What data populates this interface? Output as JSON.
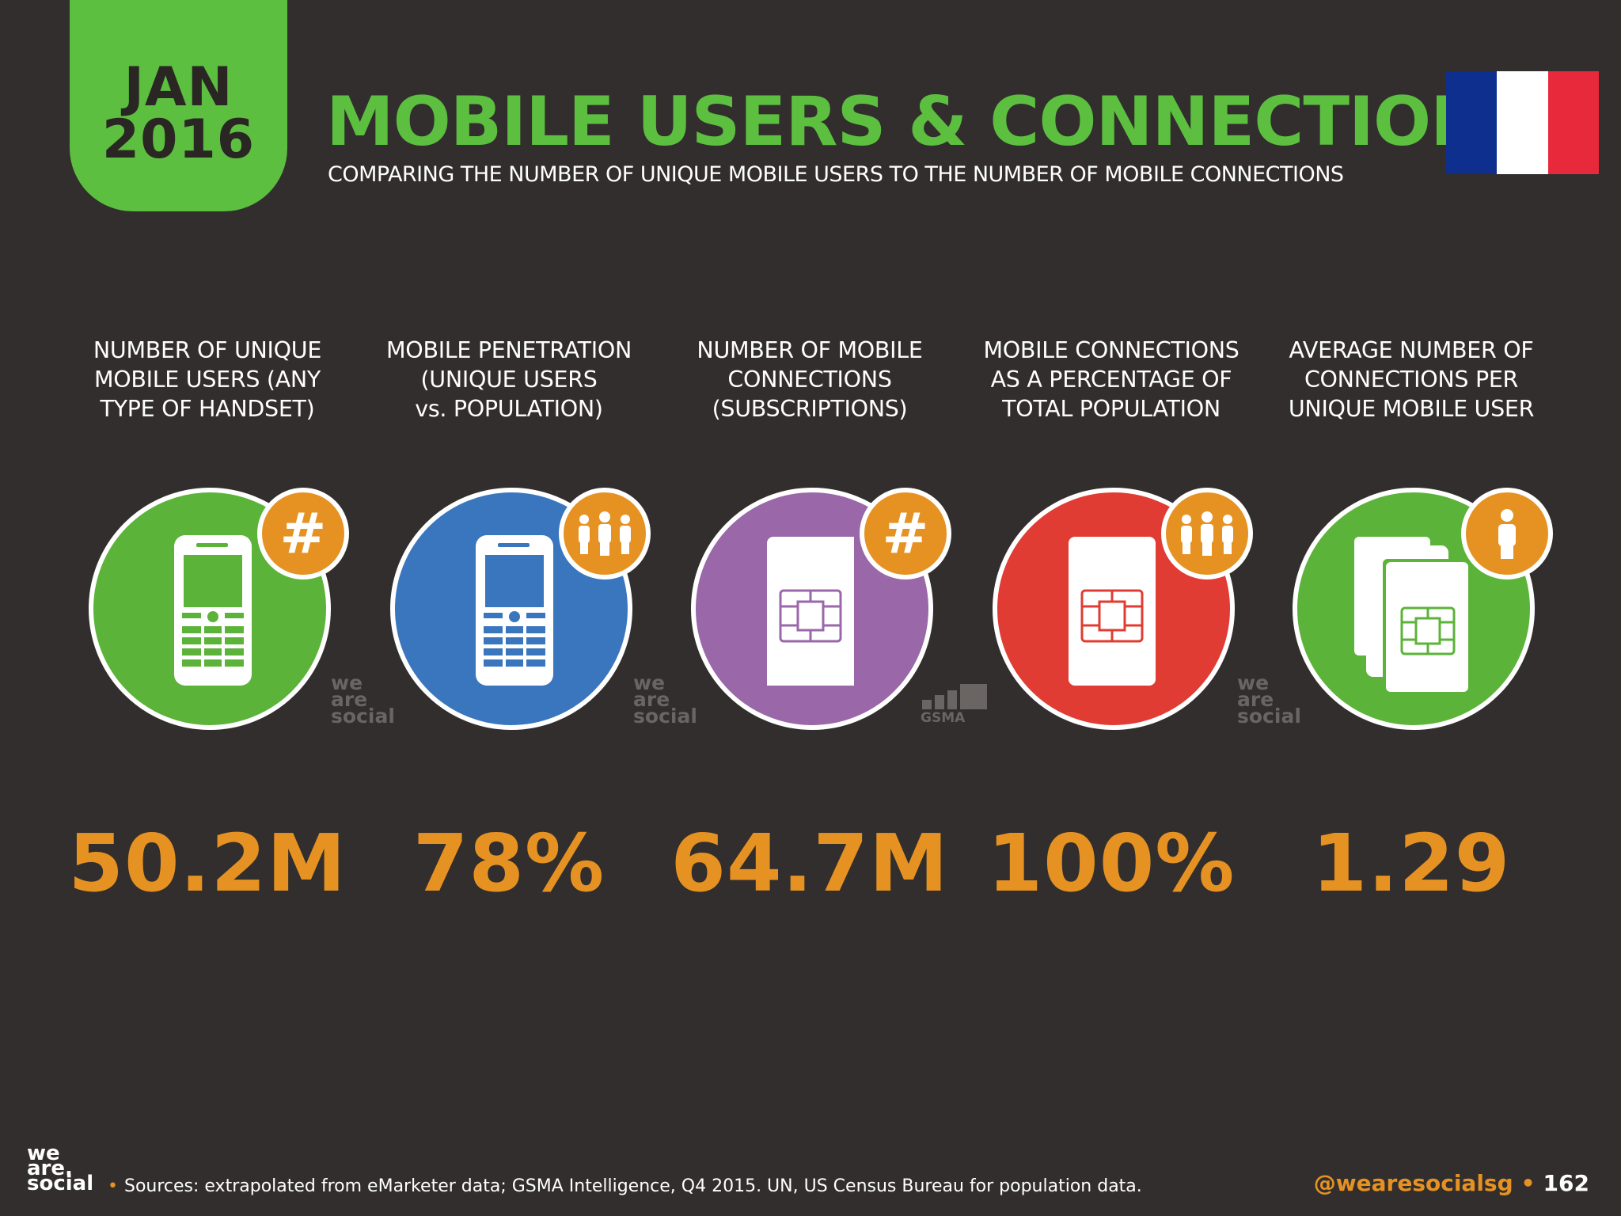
{
  "header": {
    "date_month": "JAN",
    "date_year": "2016",
    "title": "MOBILE USERS & CONNECTIONS",
    "subtitle": "COMPARING THE NUMBER OF UNIQUE MOBILE USERS TO THE NUMBER OF MOBILE CONNECTIONS"
  },
  "flag": {
    "country_icon": "france-flag-icon",
    "colors": [
      "#0f2f8f",
      "#ffffff",
      "#e8293b"
    ]
  },
  "stats": [
    {
      "label_lines": [
        "NUMBER OF UNIQUE",
        "MOBILE USERS (ANY",
        "TYPE OF HANDSET)"
      ],
      "value": "50.2M",
      "circle_color": "#5cb339",
      "icon": "mobile-phone-icon",
      "badge_icon": "hash-icon"
    },
    {
      "label_lines": [
        "MOBILE PENETRATION",
        "(UNIQUE USERS",
        "vs. POPULATION)"
      ],
      "value": "78%",
      "circle_color": "#3a76bd",
      "icon": "mobile-phone-icon",
      "badge_icon": "people-group-icon"
    },
    {
      "label_lines": [
        "NUMBER OF MOBILE",
        "CONNECTIONS",
        "(SUBSCRIPTIONS)"
      ],
      "value": "64.7M",
      "circle_color": "#9a67a9",
      "icon": "sim-card-icon",
      "badge_icon": "hash-icon"
    },
    {
      "label_lines": [
        "MOBILE CONNECTIONS",
        "AS A PERCENTAGE OF",
        "TOTAL POPULATION"
      ],
      "value": "100%",
      "circle_color": "#e03c33",
      "icon": "sim-card-icon",
      "badge_icon": "people-group-icon"
    },
    {
      "label_lines": [
        "AVERAGE NUMBER OF",
        "CONNECTIONS PER",
        "UNIQUE MOBILE USER"
      ],
      "value": "1.29",
      "circle_color": "#5cb339",
      "icon": "stacked-sim-cards-icon",
      "badge_icon": "single-person-icon"
    }
  ],
  "watermarks": {
    "we": "we",
    "are": "are",
    "social": "social",
    "gsma": "GSMA"
  },
  "footer": {
    "logo_we": "we",
    "logo_are": "are.",
    "logo_social": "social",
    "sources_bullet": "•",
    "sources": "Sources: extrapolated from eMarketer data; GSMA Intelligence, Q4 2015. UN, US Census Bureau for population data.",
    "handle": "@wearesocialsg",
    "separator": "•",
    "page": "162",
    "accent_color": "#e69223"
  }
}
